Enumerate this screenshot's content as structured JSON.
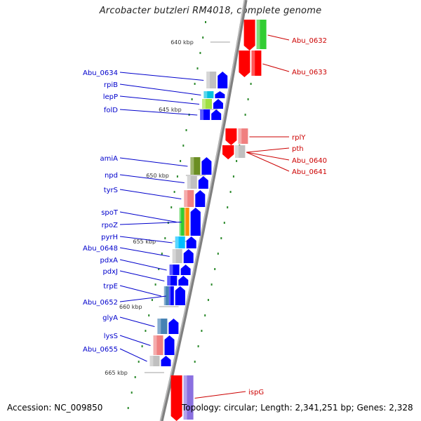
{
  "title": "Arcobacter butzleri RM4018, complete genome",
  "footer": {
    "accession": "Accession: NC_009850",
    "topology": "Topology: circular; Length: 2,341,251 bp; Genes: 2,328"
  },
  "colors": {
    "forward_arrow": "#0000ff",
    "reverse_arrow": "#ff0000",
    "left_label": "#0000cc",
    "right_label": "#cc0000",
    "backbone": "#808080",
    "tick": "#2e8b2e",
    "ruler_text": "#333333"
  },
  "ruler": {
    "unit": "kbp",
    "ticks": [
      {
        "kbp": 640,
        "label": "640 kbp"
      },
      {
        "kbp": 645,
        "label": "645 kbp"
      },
      {
        "kbp": 650,
        "label": "650 kbp"
      },
      {
        "kbp": 655,
        "label": "655 kbp"
      },
      {
        "kbp": 660,
        "label": "660 kbp"
      },
      {
        "kbp": 665,
        "label": "665 kbp"
      }
    ]
  },
  "genes": {
    "left": [
      {
        "name": "Abu_0634",
        "strand": "+",
        "cog_color": "#c0c0c0"
      },
      {
        "name": "rpiB",
        "strand": "+",
        "cog_color": "#00c0e0"
      },
      {
        "name": "lepP",
        "strand": "+",
        "cog_color": "#a0e040"
      },
      {
        "name": "folD",
        "strand": "+",
        "cog_color": "#0000ff"
      },
      {
        "name": "amiA",
        "strand": "+",
        "cog_color": "#6b8e23"
      },
      {
        "name": "npd",
        "strand": "+",
        "cog_color": "#c0c0c0"
      },
      {
        "name": "tyrS",
        "strand": "+",
        "cog_color": "#f08080"
      },
      {
        "name": "spoT",
        "strand": "+",
        "cog_color": "#32cd32"
      },
      {
        "name": "rpoZ",
        "strand": "+",
        "cog_color": "#ff8c00"
      },
      {
        "name": "pyrH",
        "strand": "+",
        "cog_color": "#00bfff"
      },
      {
        "name": "Abu_0648",
        "strand": "+",
        "cog_color": "#c0c0c0"
      },
      {
        "name": "pdxA",
        "strand": "+",
        "cog_color": "#0000ff"
      },
      {
        "name": "pdxJ",
        "strand": "+",
        "cog_color": "#0000ff"
      },
      {
        "name": "trpE",
        "strand": "+",
        "cog_color": "#4682b4"
      },
      {
        "name": "Abu_0652",
        "strand": "+",
        "cog_color": "#0000ff"
      },
      {
        "name": "glyA",
        "strand": "+",
        "cog_color": "#4682b4"
      },
      {
        "name": "lysS",
        "strand": "+",
        "cog_color": "#f08080"
      },
      {
        "name": "Abu_0655",
        "strand": "+",
        "cog_color": "#c0c0c0"
      }
    ],
    "right": [
      {
        "name": "Abu_0632",
        "strand": "-",
        "cog_color": "#32cd32"
      },
      {
        "name": "Abu_0633",
        "strand": "-",
        "cog_color": "#ff0000"
      },
      {
        "name": "rplY",
        "strand": "-",
        "cog_color": "#f08080"
      },
      {
        "name": "pth",
        "strand": "-",
        "cog_color": "#f08080"
      },
      {
        "name": "Abu_0640",
        "strand": "-",
        "cog_color": "#c0c0c0"
      },
      {
        "name": "Abu_0641",
        "strand": "-",
        "cog_color": "#c0c0c0"
      },
      {
        "name": "ispG",
        "strand": "-",
        "cog_color": "#8a70e0"
      }
    ]
  }
}
